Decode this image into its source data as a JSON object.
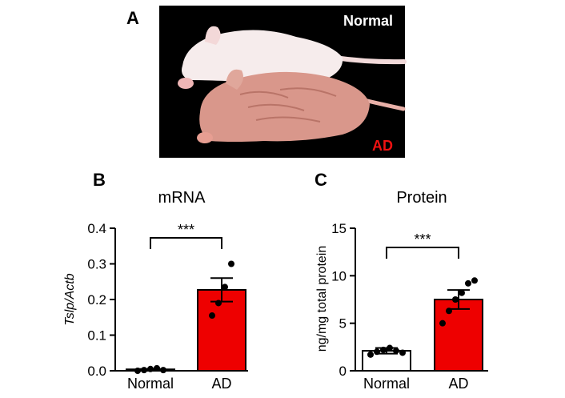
{
  "colors": {
    "bar_normal": "#ffffff",
    "bar_ad": "#ee0000",
    "axis": "#000000",
    "photo_bg": "#000000",
    "photo_label_normal": "#ffffff",
    "photo_label_ad": "#ee1111"
  },
  "panel_a": {
    "letter": "A",
    "label_top": "Normal",
    "label_bottom": "AD"
  },
  "chart_data": [
    {
      "panel": "B",
      "type": "bar",
      "title": "mRNA",
      "ylabel_italic": "Tslp/Actb",
      "categories": [
        "Normal",
        "AD"
      ],
      "values": [
        0.004,
        0.227
      ],
      "sem": [
        0.001,
        0.033
      ],
      "points": [
        [
          0.0,
          0.002,
          0.005,
          0.007,
          0.002
        ],
        [
          0.155,
          0.19,
          0.235,
          0.3
        ]
      ],
      "ylim": [
        0,
        0.4
      ],
      "yticks": [
        "0.0",
        "0.1",
        "0.2",
        "0.3",
        "0.4"
      ],
      "significance": "***"
    },
    {
      "panel": "C",
      "type": "bar",
      "title": "Protein",
      "ylabel": "ng/mg total protein",
      "categories": [
        "Normal",
        "AD"
      ],
      "values": [
        2.1,
        7.5
      ],
      "sem": [
        0.3,
        1.0
      ],
      "points": [
        [
          1.7,
          2.0,
          2.2,
          2.4,
          2.1,
          1.9
        ],
        [
          5.0,
          6.3,
          7.5,
          8.2,
          9.2,
          9.5
        ]
      ],
      "ylim": [
        0,
        15
      ],
      "yticks": [
        "0",
        "5",
        "10",
        "15"
      ],
      "significance": "***"
    }
  ]
}
